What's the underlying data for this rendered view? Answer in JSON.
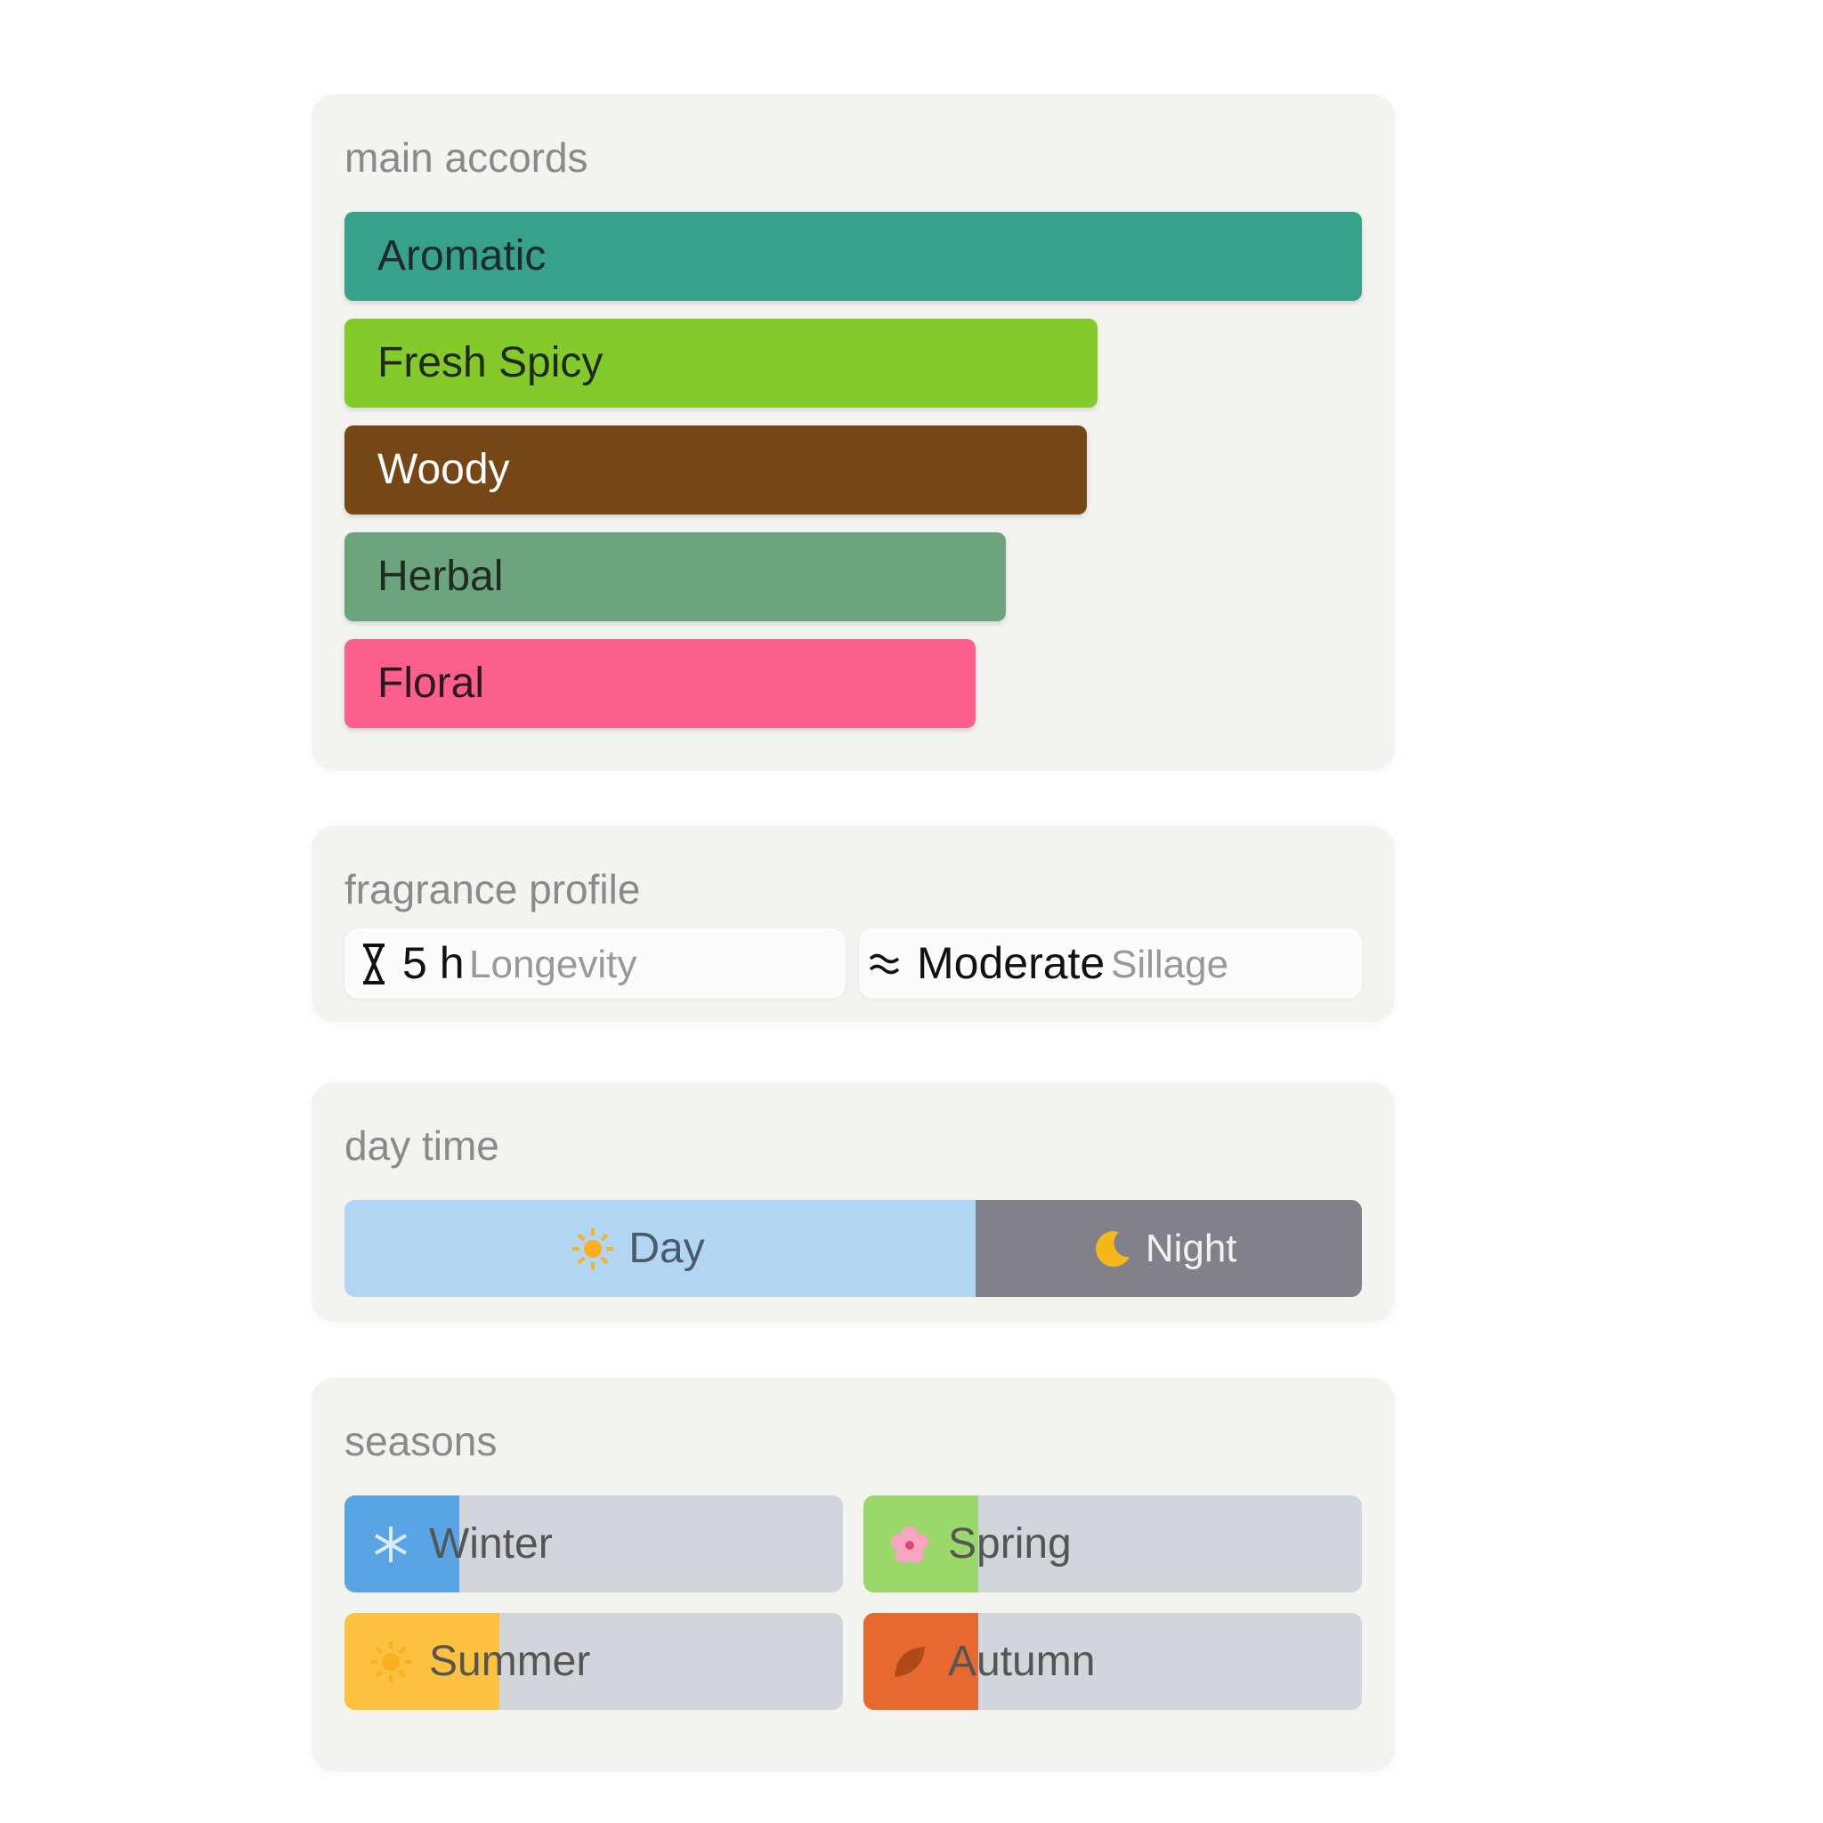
{
  "main_accords": {
    "title": "main accords",
    "items": [
      {
        "name": "Aromatic",
        "value": 100,
        "color": "#38a18a",
        "text_color": "#1f2a2a"
      },
      {
        "name": "Fresh Spicy",
        "value": 74,
        "color": "#84ca2a",
        "text_color": "#1f2a1a"
      },
      {
        "name": "Woody",
        "value": 73,
        "color": "#774617",
        "text_color": "#ffffff"
      },
      {
        "name": "Herbal",
        "value": 65,
        "color": "#6ca47d",
        "text_color": "#1f2a22"
      },
      {
        "name": "Floral",
        "value": 62,
        "color": "#fd5f8d",
        "text_color": "#2a1a1f"
      }
    ]
  },
  "fragrance_profile": {
    "title": "fragrance profile",
    "longevity": {
      "value": "5 h",
      "label": "Longevity"
    },
    "sillage": {
      "value": "Moderate",
      "label": "Sillage"
    }
  },
  "day_time": {
    "title": "day time",
    "day": {
      "label": "Day",
      "value": 62,
      "color": "#b0d6f4"
    },
    "night": {
      "label": "Night",
      "value": 38,
      "color": "#808189"
    }
  },
  "seasons": {
    "title": "seasons",
    "items": [
      {
        "name": "Winter",
        "value": 23,
        "color": "#58a4e4"
      },
      {
        "name": "Spring",
        "value": 23,
        "color": "#9ad86a"
      },
      {
        "name": "Summer",
        "value": 31,
        "color": "#fdc140"
      },
      {
        "name": "Autumn",
        "value": 23,
        "color": "#e8692f"
      }
    ]
  }
}
